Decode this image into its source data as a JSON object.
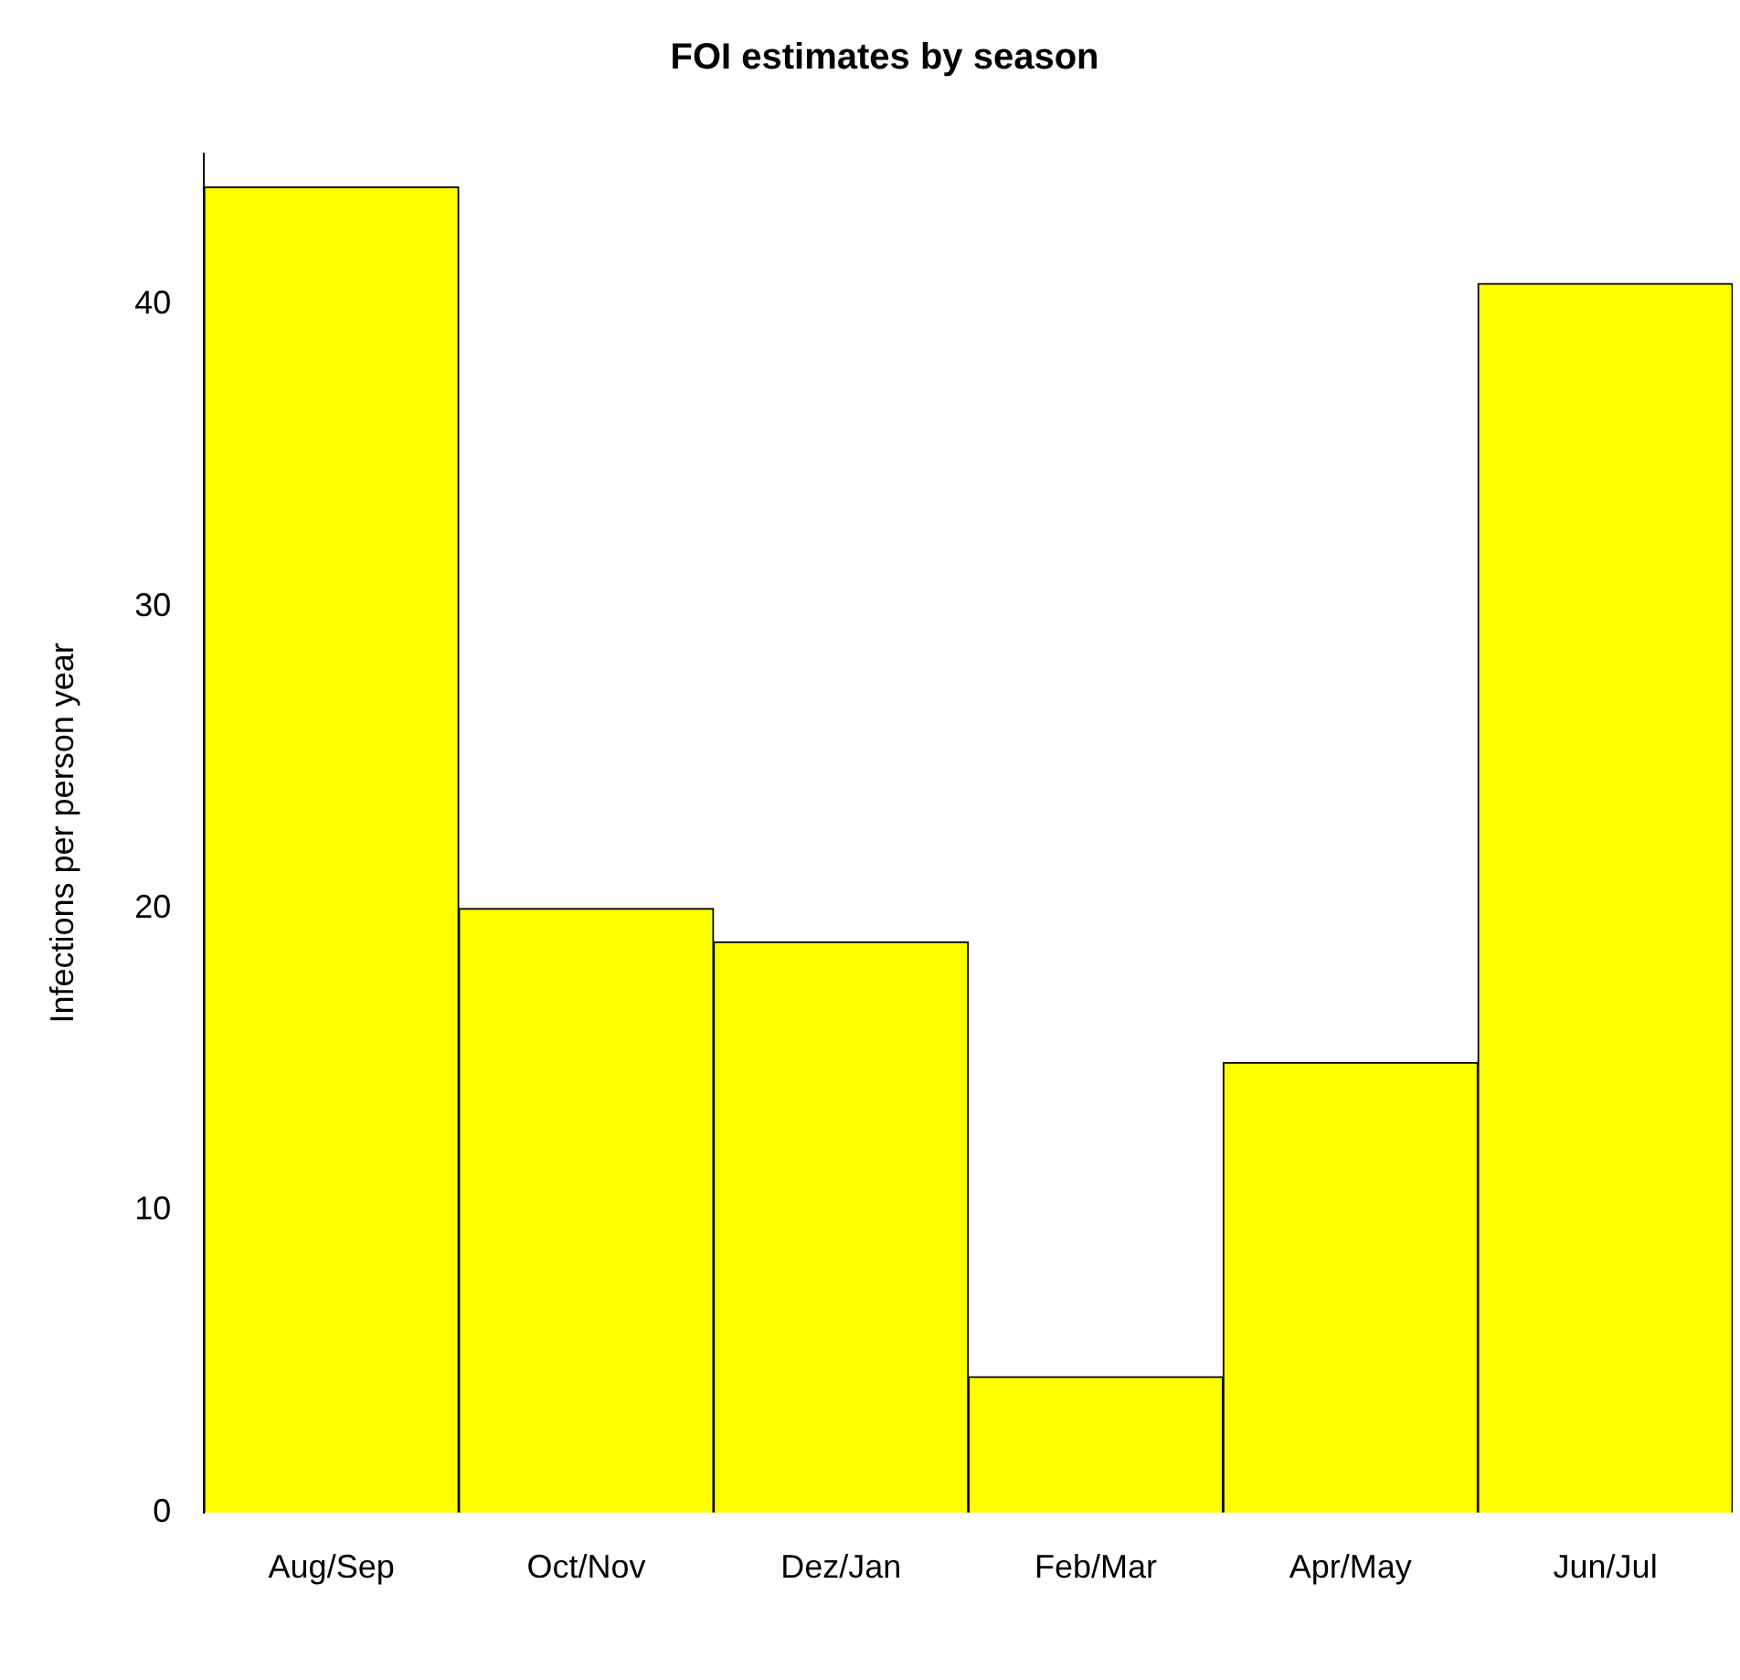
{
  "chart_data": {
    "type": "bar",
    "title": "FOI estimates by season",
    "ylabel": "Infections per person year",
    "categories": [
      "Aug/Sep",
      "Oct/Nov",
      "Dez/Jan",
      "Feb/Mar",
      "Apr/May",
      "Jun/Jul"
    ],
    "values": [
      43.9,
      20.0,
      18.9,
      4.5,
      14.9,
      40.7
    ],
    "color": "#ffff00",
    "ylim": [
      0,
      45
    ],
    "yticks": [
      0,
      10,
      20,
      30,
      40
    ],
    "grid": false,
    "legend": false
  }
}
